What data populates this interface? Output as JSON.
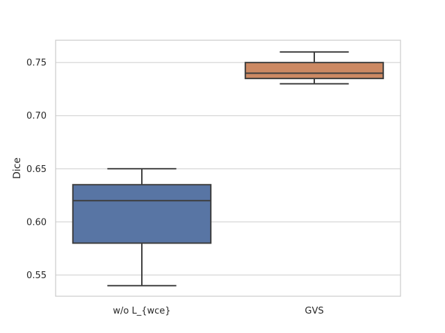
{
  "chart_data": {
    "type": "box",
    "title": "",
    "xlabel": "",
    "ylabel": "Dice",
    "ylim": [
      0.53,
      0.771
    ],
    "yticks": [
      "0.55",
      "0.60",
      "0.65",
      "0.70",
      "0.75"
    ],
    "grid": true,
    "categories": [
      "w/o L_{wce}",
      "GVS"
    ],
    "boxes": [
      {
        "category": "w/o L_{wce}",
        "whisker_low": 0.54,
        "q1": 0.58,
        "median": 0.62,
        "q3": 0.635,
        "whisker_high": 0.65,
        "color": "#5875a4"
      },
      {
        "category": "GVS",
        "whisker_low": 0.73,
        "q1": 0.735,
        "median": 0.74,
        "q3": 0.75,
        "whisker_high": 0.76,
        "color": "#cc8963"
      }
    ]
  },
  "colors": {
    "grid": "#cccccc",
    "frame": "#cccccc",
    "box_line": "#3d3d3d",
    "text": "#262626"
  }
}
